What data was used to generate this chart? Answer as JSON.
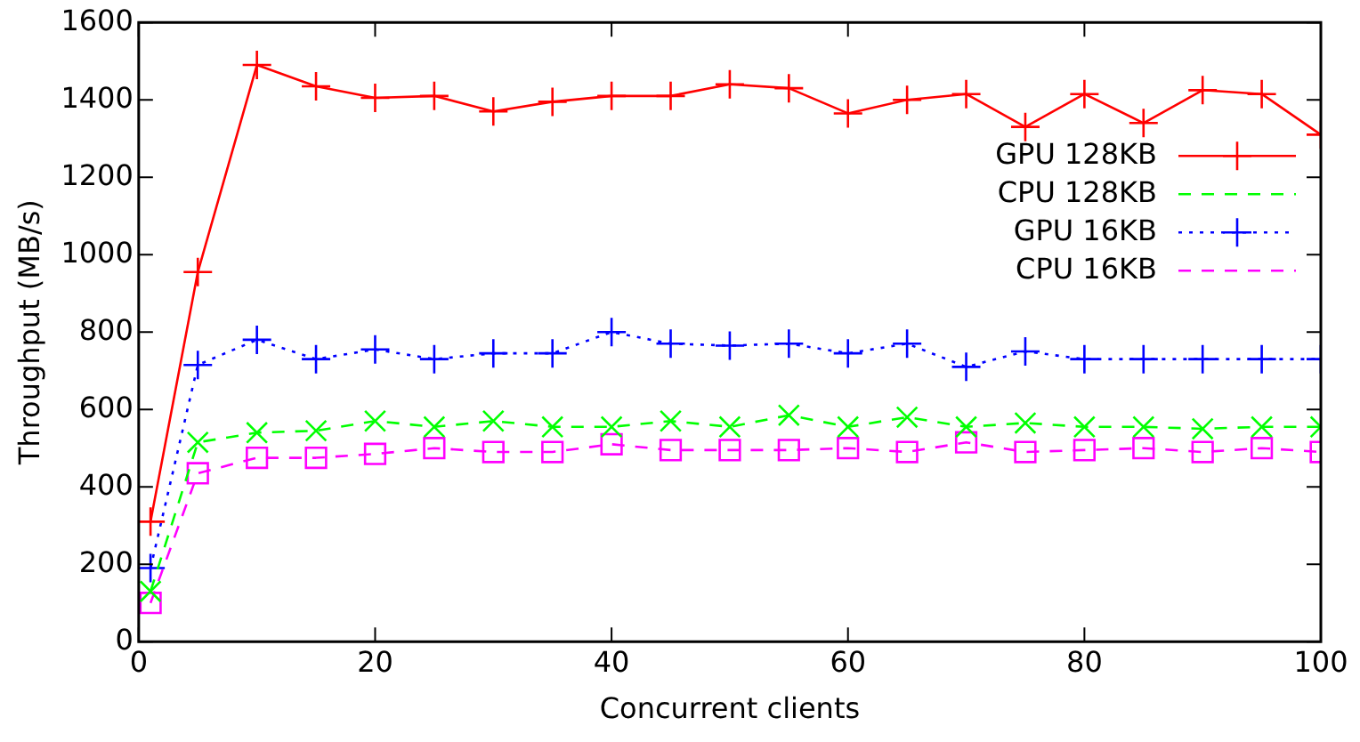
{
  "chart_data": {
    "type": "line",
    "xlabel": "Concurrent clients",
    "ylabel": "Throughput (MB/s)",
    "x": [
      1,
      5,
      10,
      15,
      20,
      25,
      30,
      35,
      40,
      45,
      50,
      55,
      60,
      65,
      70,
      75,
      80,
      85,
      90,
      95,
      100
    ],
    "xlim": [
      0,
      100
    ],
    "xticks": [
      0,
      20,
      40,
      60,
      80,
      100
    ],
    "ylim": [
      0,
      1600
    ],
    "yticks": [
      0,
      200,
      400,
      600,
      800,
      1000,
      1200,
      1400,
      1600
    ],
    "grid": false,
    "legend": "top right",
    "series": [
      {
        "name": "GPU 128KB",
        "color": "#ff0000",
        "marker": "cross",
        "line_style": "solid",
        "values": [
          310,
          955,
          1490,
          1435,
          1405,
          1410,
          1370,
          1395,
          1410,
          1410,
          1440,
          1430,
          1365,
          1400,
          1415,
          1330,
          1415,
          1340,
          1425,
          1415,
          1310
        ]
      },
      {
        "name": "CPU 128KB",
        "color": "#00ff00",
        "marker": "x",
        "line_style": "dashed",
        "values": [
          130,
          515,
          540,
          545,
          570,
          555,
          570,
          555,
          555,
          570,
          555,
          585,
          555,
          580,
          555,
          565,
          555,
          555,
          550,
          555,
          555
        ]
      },
      {
        "name": "GPU 16KB",
        "color": "#0000ff",
        "marker": "cross",
        "line_style": "dotted",
        "values": [
          190,
          715,
          780,
          730,
          755,
          730,
          745,
          745,
          800,
          770,
          765,
          770,
          745,
          770,
          710,
          750,
          730,
          730,
          730,
          730,
          730
        ]
      },
      {
        "name": "CPU 16KB",
        "color": "#ff00ff",
        "marker": "square",
        "line_style": "dashed",
        "values": [
          100,
          435,
          475,
          475,
          485,
          500,
          490,
          490,
          510,
          495,
          495,
          495,
          500,
          490,
          515,
          490,
          495,
          500,
          490,
          500,
          490
        ]
      }
    ]
  }
}
